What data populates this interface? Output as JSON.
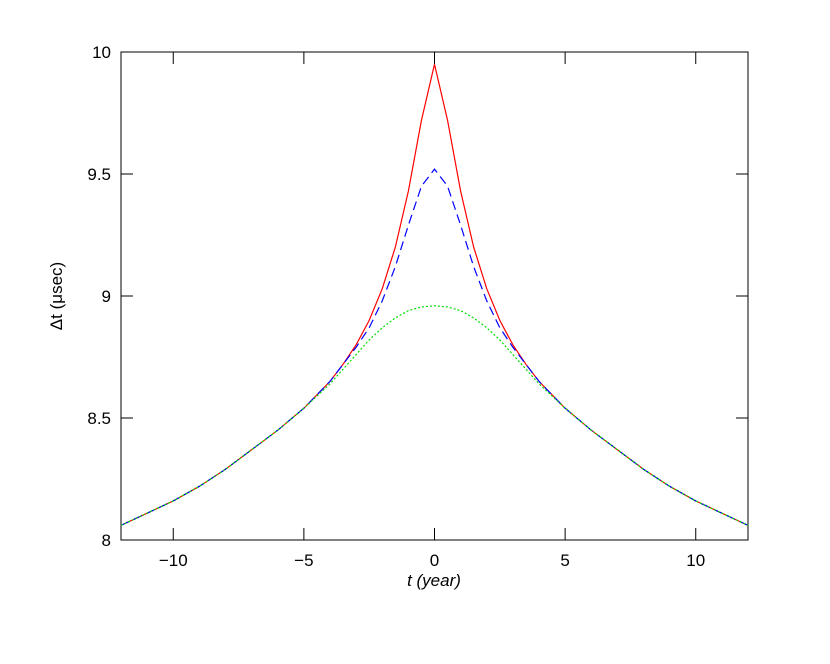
{
  "chart_data": {
    "type": "line",
    "xlabel": "t  (year)",
    "ylabel": "Δt  (μsec)",
    "x": [
      -12,
      -11,
      -10,
      -9,
      -8,
      -7,
      -6,
      -5,
      -4,
      -3.5,
      -3,
      -2.5,
      -2,
      -1.5,
      -1,
      -0.5,
      0,
      0.5,
      1,
      1.5,
      2,
      2.5,
      3,
      3.5,
      4,
      5,
      6,
      7,
      8,
      9,
      10,
      11,
      12
    ],
    "series": [
      {
        "color": "#ff0000",
        "dash": "solid",
        "values": [
          8.06,
          8.11,
          8.16,
          8.22,
          8.29,
          8.37,
          8.45,
          8.54,
          8.65,
          8.72,
          8.8,
          8.9,
          9.03,
          9.2,
          9.43,
          9.72,
          9.95,
          9.72,
          9.43,
          9.2,
          9.03,
          8.9,
          8.8,
          8.72,
          8.65,
          8.54,
          8.45,
          8.37,
          8.29,
          8.22,
          8.16,
          8.11,
          8.06
        ]
      },
      {
        "color": "#0000ff",
        "dash": "dashed",
        "values": [
          8.06,
          8.11,
          8.16,
          8.22,
          8.29,
          8.37,
          8.45,
          8.54,
          8.65,
          8.72,
          8.79,
          8.87,
          8.98,
          9.12,
          9.29,
          9.45,
          9.52,
          9.45,
          9.29,
          9.12,
          8.98,
          8.87,
          8.79,
          8.72,
          8.65,
          8.54,
          8.45,
          8.37,
          8.29,
          8.22,
          8.16,
          8.11,
          8.06
        ]
      },
      {
        "color": "#00dd00",
        "dash": "dotted",
        "values": [
          8.06,
          8.11,
          8.16,
          8.22,
          8.29,
          8.37,
          8.45,
          8.54,
          8.64,
          8.7,
          8.76,
          8.82,
          8.87,
          8.91,
          8.94,
          8.955,
          8.96,
          8.955,
          8.94,
          8.91,
          8.87,
          8.82,
          8.76,
          8.7,
          8.64,
          8.54,
          8.45,
          8.37,
          8.29,
          8.22,
          8.16,
          8.11,
          8.06
        ]
      }
    ],
    "xlim": [
      -12,
      12
    ],
    "ylim": [
      8,
      10
    ],
    "xticks": [
      {
        "value": -10,
        "label": "−10"
      },
      {
        "value": -5,
        "label": "−5"
      },
      0,
      5,
      10
    ],
    "yticks": [
      8,
      8.5,
      9,
      9.5,
      10
    ]
  }
}
